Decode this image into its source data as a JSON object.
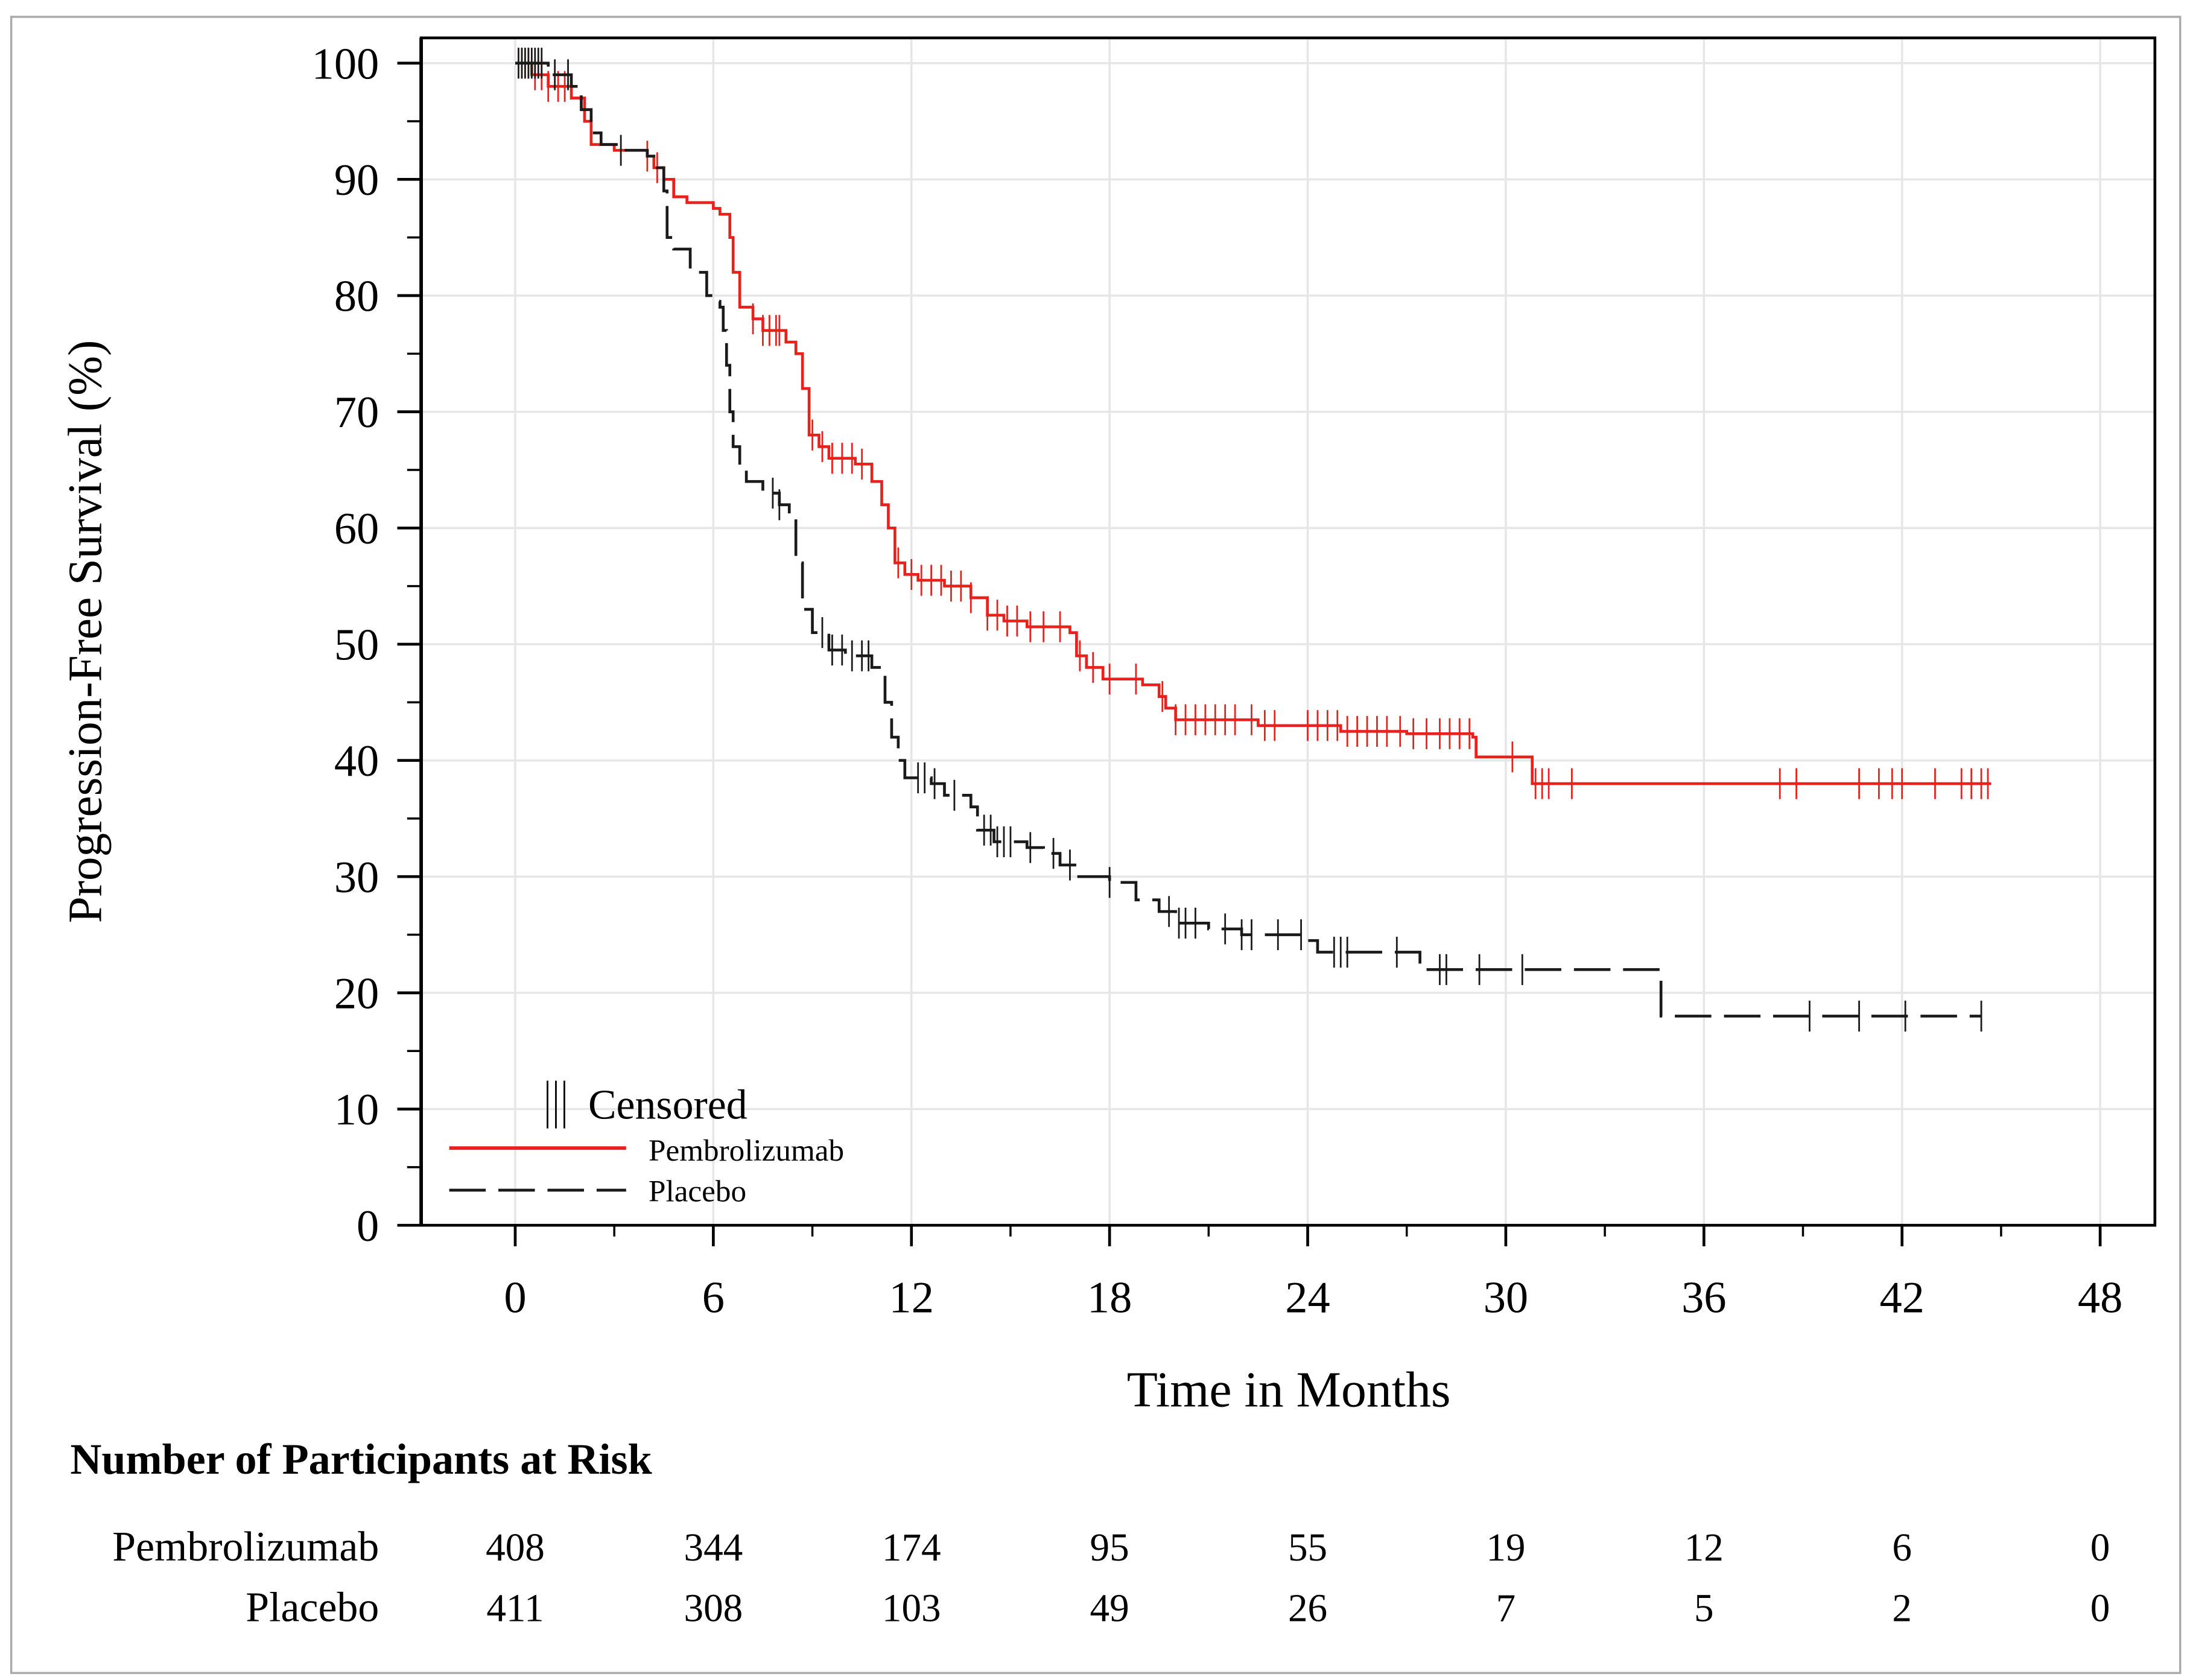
{
  "chart_data": {
    "type": "line",
    "subtype": "kaplan-meier step",
    "xlabel": "Time in Months",
    "ylabel": "Progression-Free Survival (%)",
    "xlim": [
      0,
      48
    ],
    "ylim": [
      0,
      100
    ],
    "xticks": [
      0,
      6,
      12,
      18,
      24,
      30,
      36,
      42,
      48
    ],
    "yticks": [
      0,
      10,
      20,
      30,
      40,
      50,
      60,
      70,
      80,
      90,
      100
    ],
    "grid": true,
    "legend": {
      "placement": "bottom-left",
      "censored_label": "Censored",
      "censored_symbol": "|||"
    },
    "series": [
      {
        "name": "Pembrolizumab",
        "color": "#e8211c",
        "style": "solid",
        "steps": [
          [
            0,
            100
          ],
          [
            0.5,
            99
          ],
          [
            1,
            98
          ],
          [
            1.7,
            97
          ],
          [
            2.1,
            95
          ],
          [
            2.3,
            93
          ],
          [
            3,
            92.5
          ],
          [
            4,
            92
          ],
          [
            4.2,
            91
          ],
          [
            4.5,
            90
          ],
          [
            4.8,
            88.5
          ],
          [
            5.2,
            88
          ],
          [
            6,
            87.5
          ],
          [
            6.2,
            87
          ],
          [
            6.5,
            85
          ],
          [
            6.6,
            82
          ],
          [
            6.8,
            79
          ],
          [
            7.2,
            78
          ],
          [
            7.5,
            77
          ],
          [
            8.2,
            76
          ],
          [
            8.5,
            75
          ],
          [
            8.7,
            72
          ],
          [
            8.9,
            68
          ],
          [
            9.2,
            67
          ],
          [
            9.5,
            66
          ],
          [
            10.3,
            65.5
          ],
          [
            10.8,
            64
          ],
          [
            11.1,
            62
          ],
          [
            11.3,
            60
          ],
          [
            11.5,
            57
          ],
          [
            11.8,
            56
          ],
          [
            12.2,
            55.5
          ],
          [
            13,
            55
          ],
          [
            13.8,
            54
          ],
          [
            14.3,
            52.5
          ],
          [
            14.8,
            52
          ],
          [
            15.5,
            51.5
          ],
          [
            16.8,
            51
          ],
          [
            17,
            49
          ],
          [
            17.3,
            48
          ],
          [
            17.8,
            47
          ],
          [
            19,
            46.5
          ],
          [
            19.5,
            45.5
          ],
          [
            19.7,
            44.5
          ],
          [
            20,
            43.5
          ],
          [
            22.5,
            43
          ],
          [
            25,
            42.5
          ],
          [
            27,
            42.3
          ],
          [
            29,
            42
          ],
          [
            29.1,
            40.3
          ],
          [
            30.8,
            38
          ],
          [
            44.7,
            38
          ]
        ],
        "censored": [
          0.2,
          0.4,
          0.6,
          0.8,
          1.0,
          1.3,
          1.5,
          4.0,
          4.3,
          7.2,
          7.5,
          7.7,
          7.9,
          8.0,
          9.0,
          9.3,
          9.6,
          9.9,
          10.2,
          10.5,
          11.6,
          12.0,
          12.3,
          12.6,
          12.9,
          13.2,
          13.5,
          13.8,
          14.3,
          14.6,
          14.9,
          15.2,
          15.6,
          16.0,
          16.5,
          17.1,
          17.5,
          18.0,
          18.8,
          19.6,
          20.0,
          20.3,
          20.6,
          20.9,
          21.2,
          21.5,
          21.8,
          22.3,
          22.7,
          23.0,
          24.0,
          24.3,
          24.6,
          24.9,
          25.2,
          25.5,
          25.8,
          26.1,
          26.4,
          26.8,
          27.2,
          27.6,
          28.0,
          28.3,
          28.6,
          28.9,
          30.2,
          30.9,
          31.1,
          31.3,
          32.0,
          38.3,
          38.8,
          40.7,
          41.3,
          41.7,
          42.0,
          43.0,
          43.8,
          44.1,
          44.4,
          44.6
        ],
        "at_risk": [
          408,
          344,
          174,
          95,
          55,
          19,
          12,
          6,
          0
        ]
      },
      {
        "name": "Placebo",
        "color": "#1a1a1a",
        "style": "dashed",
        "steps": [
          [
            0,
            100
          ],
          [
            1,
            99
          ],
          [
            1.7,
            98
          ],
          [
            2,
            96
          ],
          [
            2.3,
            94
          ],
          [
            2.6,
            93
          ],
          [
            3.2,
            92.5
          ],
          [
            4,
            92
          ],
          [
            4.3,
            91
          ],
          [
            4.5,
            89
          ],
          [
            4.6,
            85
          ],
          [
            4.8,
            84
          ],
          [
            5.3,
            82
          ],
          [
            5.8,
            80
          ],
          [
            6,
            79.5
          ],
          [
            6.2,
            79
          ],
          [
            6.3,
            77
          ],
          [
            6.4,
            74
          ],
          [
            6.5,
            70
          ],
          [
            6.6,
            67
          ],
          [
            6.8,
            65
          ],
          [
            7,
            64
          ],
          [
            7.5,
            63
          ],
          [
            8,
            62
          ],
          [
            8.3,
            61
          ],
          [
            8.5,
            57
          ],
          [
            8.7,
            53
          ],
          [
            9,
            51
          ],
          [
            9.5,
            49.5
          ],
          [
            10,
            49
          ],
          [
            10.8,
            48
          ],
          [
            11.2,
            45
          ],
          [
            11.4,
            42
          ],
          [
            11.6,
            40
          ],
          [
            11.8,
            38.5
          ],
          [
            12.6,
            38
          ],
          [
            13,
            37
          ],
          [
            13.8,
            36
          ],
          [
            14,
            34
          ],
          [
            14.5,
            33
          ],
          [
            15.5,
            32.5
          ],
          [
            16,
            32
          ],
          [
            16.5,
            31
          ],
          [
            17,
            30
          ],
          [
            18,
            29.5
          ],
          [
            18.8,
            28
          ],
          [
            19.5,
            27
          ],
          [
            20,
            26
          ],
          [
            21,
            25.5
          ],
          [
            22,
            25
          ],
          [
            24,
            24.5
          ],
          [
            24.3,
            23.5
          ],
          [
            27.4,
            22
          ],
          [
            34.6,
            22
          ],
          [
            34.7,
            18
          ],
          [
            44.4,
            18
          ]
        ],
        "censored": [
          0.1,
          0.2,
          0.3,
          0.4,
          0.5,
          0.6,
          0.7,
          0.8,
          1.2,
          1.6,
          3.2,
          7.8,
          8.0,
          9.3,
          9.6,
          9.9,
          10.2,
          10.5,
          10.7,
          12.2,
          12.4,
          12.7,
          13.3,
          14.2,
          14.4,
          14.6,
          14.8,
          15.0,
          15.6,
          16.3,
          16.8,
          18.0,
          19.8,
          20.1,
          20.3,
          20.6,
          21.5,
          22.0,
          22.3,
          23.1,
          23.8,
          24.8,
          25.0,
          25.2,
          26.7,
          28.0,
          28.2,
          29.2,
          30.5,
          39.2,
          40.7,
          42.1,
          44.4
        ],
        "at_risk": [
          411,
          308,
          103,
          49,
          26,
          7,
          5,
          2,
          0
        ]
      }
    ],
    "at_risk_table": {
      "title": "Number of Participants at Risk",
      "rows": [
        "Pembrolizumab",
        "Placebo"
      ]
    }
  }
}
